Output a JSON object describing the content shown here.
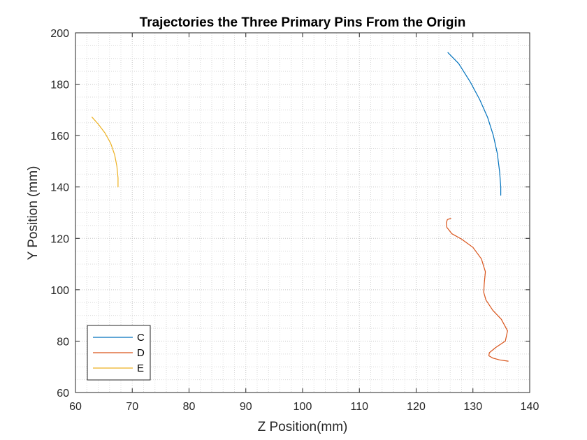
{
  "chart_data": {
    "type": "line",
    "title": "Trajectories the Three Primary Pins From the Origin",
    "xlabel": "Z Position(mm)",
    "ylabel": "Y Position (mm)",
    "xlim": [
      60,
      140
    ],
    "ylim": [
      60,
      200
    ],
    "xticks": [
      60,
      70,
      80,
      90,
      100,
      110,
      120,
      130,
      140
    ],
    "yticks": [
      60,
      80,
      100,
      120,
      140,
      160,
      180,
      200
    ],
    "grid": "on (major and minor, dotted)",
    "legend_location": "bottom-left",
    "series": [
      {
        "name": "C",
        "color": "#0072BD",
        "x": [
          125.6,
          127.5,
          129.5,
          131.2,
          132.6,
          133.6,
          134.3,
          134.7,
          134.9,
          134.9
        ],
        "y": [
          192.3,
          188.0,
          181.0,
          174.0,
          167.0,
          160.0,
          153.0,
          146.0,
          140.0,
          136.8
        ]
      },
      {
        "name": "D",
        "color": "#D95319",
        "x": [
          126.1,
          125.5,
          125.3,
          125.4,
          126.3,
          128.0,
          130.0,
          131.5,
          132.2,
          132.0,
          131.9,
          132.3,
          133.5,
          135.0,
          136.1,
          135.7,
          134.0,
          132.9,
          132.8,
          133.5,
          134.7,
          136.2
        ],
        "y": [
          127.8,
          127.3,
          126.0,
          124.3,
          121.8,
          119.7,
          116.5,
          112.0,
          107.0,
          102.5,
          99.0,
          96.0,
          92.0,
          88.5,
          84.0,
          80.0,
          77.5,
          75.5,
          74.3,
          73.4,
          72.7,
          72.2
        ]
      },
      {
        "name": "E",
        "color": "#EDB120",
        "x": [
          62.9,
          64.0,
          65.2,
          66.2,
          66.9,
          67.3,
          67.5,
          67.5
        ],
        "y": [
          167.2,
          164.5,
          161.0,
          157.0,
          152.5,
          148.0,
          143.5,
          140.0
        ]
      }
    ]
  }
}
